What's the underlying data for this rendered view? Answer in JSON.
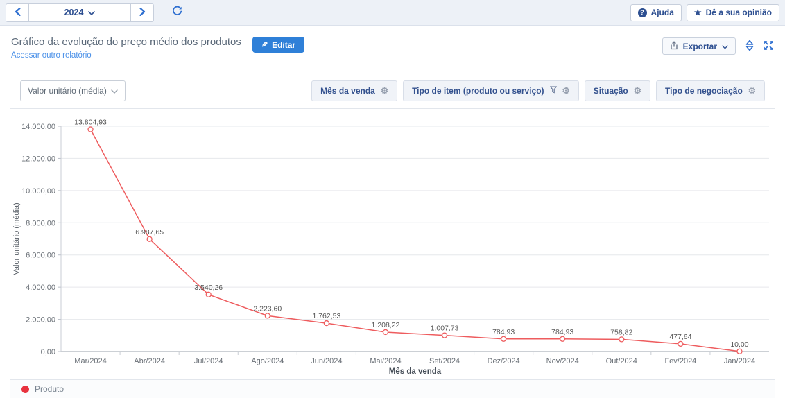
{
  "topbar": {
    "year_selector": {
      "value": "2024"
    },
    "help_label": "Ajuda",
    "feedback_label": "Dê a sua opinião"
  },
  "header": {
    "title": "Gráfico da evolução do preço médio dos produtos",
    "subtitle_link": "Acessar outro relatório",
    "edit_label": "Editar",
    "export_label": "Exportar"
  },
  "filters": {
    "metric_select": {
      "value": "Valor unitário (média)"
    },
    "chips": [
      {
        "label": "Mês da venda"
      },
      {
        "label": "Tipo de item (produto ou serviço)"
      },
      {
        "label": "Situação"
      },
      {
        "label": "Tipo de negociação"
      }
    ]
  },
  "chart_data": {
    "type": "line",
    "categories": [
      "Mar/2024",
      "Abr/2024",
      "Jul/2024",
      "Ago/2024",
      "Jun/2024",
      "Mai/2024",
      "Set/2024",
      "Dez/2024",
      "Nov/2024",
      "Out/2024",
      "Fev/2024",
      "Jan/2024"
    ],
    "series": [
      {
        "name": "Produto",
        "color": "#ee5c5e",
        "values": [
          13804.93,
          6987.65,
          3540.26,
          2223.6,
          1762.53,
          1208.22,
          1007.73,
          784.93,
          784.93,
          758.82,
          477.64,
          10.0
        ]
      }
    ],
    "point_labels": [
      "13.804,93",
      "6.987,65",
      "3.540,26",
      "2.223,60",
      "1.762,53",
      "1.208,22",
      "1.007,73",
      "784,93",
      "784,93",
      "758,82",
      "477,64",
      "10,00"
    ],
    "xlabel": "Mês da venda",
    "ylabel": "Valor unitário (média)",
    "ylim": [
      0,
      14000
    ],
    "y_tick_values": [
      0,
      2000,
      4000,
      6000,
      8000,
      10000,
      12000,
      14000
    ],
    "y_tick_labels": [
      "0,00",
      "2.000,00",
      "4.000,00",
      "6.000,00",
      "8.000,00",
      "10.000,00",
      "12.000,00",
      "14.000,00"
    ],
    "grid": true,
    "legend_position": "bottom"
  },
  "legend": {
    "series": [
      {
        "label": "Produto",
        "color": "#e8323e"
      }
    ]
  },
  "icons": {
    "gear": "⚙",
    "star": "★",
    "help_question": "?",
    "pencil": "✎"
  },
  "colors": {
    "accent_blue": "#2e6fd0",
    "dark_blue_text": "#2d4f91",
    "edit_button": "#2f80d8",
    "line_red": "#ee5c5e",
    "legend_red": "#e8323e",
    "topbar_bg": "#edf1f7"
  }
}
